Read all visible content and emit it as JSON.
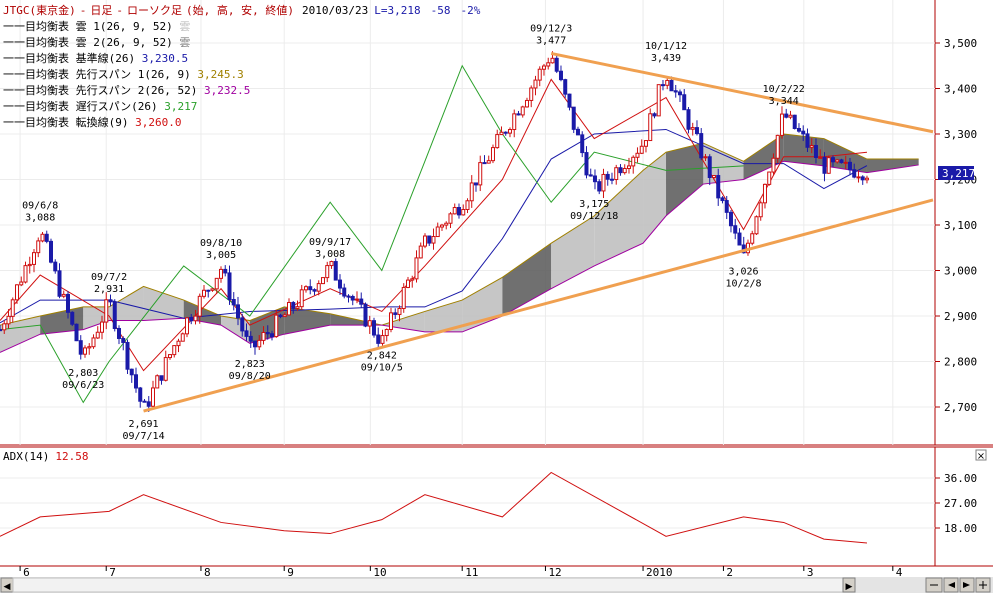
{
  "header": {
    "symbol": "JTGC",
    "market": "(東京金)",
    "sep1": "-",
    "period": "日足",
    "sep2": "-",
    "chart_kind": "ローソク足",
    "fields": "(始, 高, 安, 終値)",
    "date": "2010/03/23",
    "last_label": "L=3,218",
    "change": "-58",
    "change_pct": "-2%"
  },
  "legend": [
    {
      "prefix": "一目均衡表",
      "name": "雲 1(26, 9, 52)",
      "value": "雲",
      "color": "#c0c0c0"
    },
    {
      "prefix": "一目均衡表",
      "name": "雲 2(26, 9, 52)",
      "value": "雲",
      "color": "#808080"
    },
    {
      "prefix": "一目均衡表",
      "name": "基準線(26)",
      "value": "3,230.5",
      "color": "#1a1aa8"
    },
    {
      "prefix": "一目均衡表",
      "name": "先行スパン 1(26, 9)",
      "value": "3,245.3",
      "color": "#a08000"
    },
    {
      "prefix": "一目均衡表",
      "name": "先行スパン 2(26, 52)",
      "value": "3,232.5",
      "color": "#a000a0"
    },
    {
      "prefix": "一目均衡表",
      "name": "遅行スパン(26)",
      "value": "3,217",
      "color": "#2aa02a"
    },
    {
      "prefix": "一目均衡表",
      "name": "転換線(9)",
      "value": "3,260.0",
      "color": "#d01010"
    }
  ],
  "price_axis": {
    "ticks": [
      "3,500",
      "3,400",
      "3,300",
      "3,200",
      "3,100",
      "3,000",
      "2,900",
      "2,800",
      "2,700"
    ],
    "last_price_tag": "3,217"
  },
  "adx_panel": {
    "title": "ADX(14)",
    "value": "12.58",
    "ticks": [
      "36.00",
      "27.00",
      "18.00"
    ],
    "close_icon": "×"
  },
  "time_axis": {
    "labels": [
      "6",
      "7",
      "8",
      "9",
      "10",
      "11",
      "12",
      "2010",
      "2",
      "3",
      "4"
    ]
  },
  "annotations": [
    {
      "date": "09/6/8",
      "value": "3,088",
      "kind": "high"
    },
    {
      "date": "09/7/2",
      "value": "2,931",
      "kind": "high"
    },
    {
      "date": "09/8/10",
      "value": "3,005",
      "kind": "high"
    },
    {
      "date": "09/9/17",
      "value": "3,008",
      "kind": "high"
    },
    {
      "date": "09/12/3",
      "value": "3,477",
      "kind": "high"
    },
    {
      "date": "10/1/12",
      "value": "3,439",
      "kind": "high"
    },
    {
      "date": "10/2/22",
      "value": "3,344",
      "kind": "high"
    },
    {
      "date": "09/6/23",
      "value": "2,803",
      "kind": "low"
    },
    {
      "date": "09/7/14",
      "value": "2,691",
      "kind": "low"
    },
    {
      "date": "09/8/20",
      "value": "2,823",
      "kind": "low"
    },
    {
      "date": "09/10/5",
      "value": "2,842",
      "kind": "low"
    },
    {
      "date": "09/12/18",
      "value": "3,175",
      "kind": "low"
    },
    {
      "date": "10/2/8",
      "value": "3,026",
      "kind": "low"
    }
  ],
  "scrollbar": {
    "left_arrow": "◀",
    "right_arrow": "▶"
  },
  "colors": {
    "up": "#d01010",
    "down": "#1a1aa8",
    "trendline": "#f0a050",
    "cloud_light": "#c0c0c0",
    "cloud_dark": "#606060",
    "adx": "#d01010",
    "frame": "#b00000"
  },
  "chart_data": [
    {
      "type": "line",
      "title": "JTGC (東京金) - 日足 - ローソク足",
      "ylim": [
        2640,
        3560
      ],
      "series": [
        {
          "name": "終値",
          "x": [
            "2009-05-25",
            "2009-06-08",
            "2009-06-23",
            "2009-07-02",
            "2009-07-14",
            "2009-07-28",
            "2009-08-10",
            "2009-08-20",
            "2009-09-01",
            "2009-09-17",
            "2009-10-05",
            "2009-10-20",
            "2009-11-02",
            "2009-11-16",
            "2009-12-03",
            "2009-12-18",
            "2010-01-04",
            "2010-01-12",
            "2010-01-25",
            "2010-02-08",
            "2010-02-22",
            "2010-03-08",
            "2010-03-23"
          ],
          "values": [
            2870,
            3088,
            2803,
            2931,
            2691,
            2880,
            3005,
            2823,
            2900,
            3008,
            2842,
            3060,
            3150,
            3300,
            3477,
            3175,
            3280,
            3439,
            3250,
            3026,
            3344,
            3230,
            3218
          ]
        },
        {
          "name": "基準線(26)",
          "x": [
            "2009-05-25",
            "2009-06-08",
            "2009-07-02",
            "2009-07-28",
            "2009-08-20",
            "2009-09-17",
            "2009-10-05",
            "2009-10-20",
            "2009-11-02",
            "2009-11-16",
            "2009-12-03",
            "2009-12-18",
            "2010-01-12",
            "2010-02-08",
            "2010-02-22",
            "2010-03-08",
            "2010-03-23"
          ],
          "values": [
            2885,
            2935,
            2935,
            2895,
            2910,
            2915,
            2920,
            2920,
            2955,
            3070,
            3245,
            3300,
            3310,
            3235,
            3235,
            3180,
            3230.5
          ]
        },
        {
          "name": "転換線(9)",
          "x": [
            "2009-05-25",
            "2009-06-08",
            "2009-07-02",
            "2009-07-14",
            "2009-08-10",
            "2009-08-20",
            "2009-09-17",
            "2009-10-05",
            "2009-10-20",
            "2009-11-16",
            "2009-12-03",
            "2009-12-18",
            "2010-01-12",
            "2010-02-08",
            "2010-02-22",
            "2010-03-08",
            "2010-03-23"
          ],
          "values": [
            2890,
            2990,
            2900,
            2780,
            2960,
            2880,
            2960,
            2910,
            3010,
            3200,
            3420,
            3290,
            3380,
            3090,
            3250,
            3250,
            3260
          ]
        },
        {
          "name": "遅行スパン(26)",
          "x": [
            "2009-05-25",
            "2009-06-08",
            "2009-06-23",
            "2009-07-02",
            "2009-07-28",
            "2009-08-20",
            "2009-09-17",
            "2009-10-05",
            "2009-10-20",
            "2009-11-02",
            "2009-11-16",
            "2009-12-03",
            "2009-12-18",
            "2010-01-12",
            "2010-02-08"
          ],
          "values": [
            2870,
            2880,
            2710,
            2800,
            3010,
            2900,
            3150,
            3000,
            3240,
            3450,
            3300,
            3150,
            3260,
            3220,
            3230
          ]
        },
        {
          "name": "ADX(14)",
          "x": [
            "2009-05-25",
            "2009-06-08",
            "2009-07-02",
            "2009-07-14",
            "2009-08-10",
            "2009-09-01",
            "2009-09-17",
            "2009-10-05",
            "2009-10-20",
            "2009-11-16",
            "2009-12-03",
            "2010-01-12",
            "2010-02-08",
            "2010-02-22",
            "2010-03-08",
            "2010-03-23"
          ],
          "values": [
            15,
            22,
            24,
            30,
            20,
            17,
            16,
            21,
            30,
            22,
            38,
            15,
            22,
            20,
            14,
            12.58
          ]
        }
      ],
      "annotations_ref": "annotations"
    }
  ]
}
